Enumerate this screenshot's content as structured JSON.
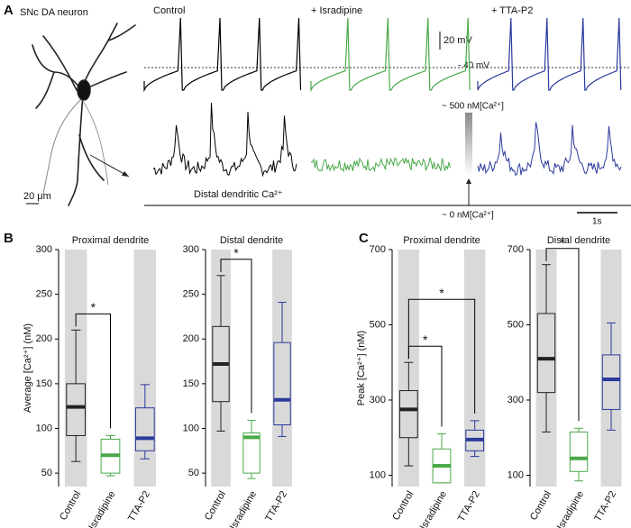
{
  "figure": {
    "panel_labels": [
      "A",
      "B",
      "C"
    ],
    "neuron_label": "SNc DA neuron",
    "conditions": [
      {
        "text": "Control",
        "color": "#000000"
      },
      {
        "text": "+ Isradipine",
        "color": "#4aa84a"
      },
      {
        "text": "+ TTA-P2",
        "color": "#2b3a9c"
      }
    ],
    "voltage_scale": "20 mV",
    "voltage_level": "- 40 mV",
    "ca_high": "~ 500 nM[Ca²⁺]",
    "ca_low": "~ 0 nM[Ca²⁺]",
    "ca_trace_label": "Distal dendritic Ca²⁺",
    "length_scale": "20 μm",
    "time_scale": "1s"
  },
  "chart_data": [
    {
      "type": "box",
      "title": "Proximal dendrite",
      "ylabel": "Average [Ca²⁺] (nM)",
      "ylim": [
        35,
        300
      ],
      "yticks": [
        50,
        100,
        150,
        200,
        250,
        300
      ],
      "band_color": "#d9d9d9",
      "categories": [
        "Control",
        "Isradipine",
        "TTA-P2"
      ],
      "boxes": [
        {
          "color": "#222222",
          "band": true,
          "low": 63,
          "q1": 92,
          "median": 124,
          "q3": 150,
          "high": 210
        },
        {
          "color": "#4aa84a",
          "band": false,
          "low": 47,
          "q1": 50,
          "median": 70,
          "q3": 88,
          "high": 92
        },
        {
          "color": "#2b3a9c",
          "band": true,
          "low": 66,
          "q1": 75,
          "median": 89,
          "q3": 123,
          "high": 149
        }
      ],
      "annotations": [
        {
          "text": "*",
          "between": [
            "Control",
            "Isradipine"
          ]
        }
      ]
    },
    {
      "type": "box",
      "title": "Distal dendrite",
      "ylim": [
        35,
        300
      ],
      "yticks": [
        50,
        100,
        150,
        200,
        250,
        300
      ],
      "band_color": "#d9d9d9",
      "categories": [
        "Control",
        "Isradipine",
        "TTA-P2"
      ],
      "boxes": [
        {
          "color": "#222222",
          "band": true,
          "low": 97,
          "q1": 130,
          "median": 172,
          "q3": 214,
          "high": 271
        },
        {
          "color": "#4aa84a",
          "band": false,
          "low": 44,
          "q1": 50,
          "median": 90,
          "q3": 95,
          "high": 109
        },
        {
          "color": "#2b3a9c",
          "band": true,
          "low": 91,
          "q1": 104,
          "median": 132,
          "q3": 196,
          "high": 241
        }
      ],
      "annotations": [
        {
          "text": "*",
          "between": [
            "Control",
            "Isradipine"
          ]
        }
      ]
    },
    {
      "type": "box",
      "title": "Proximal dendrite",
      "ylabel": "Peak [Ca²⁺] (nM)",
      "ylim": [
        70,
        700
      ],
      "yticks": [
        100,
        300,
        500,
        700
      ],
      "band_color": "#d9d9d9",
      "categories": [
        "Control",
        "Isradipine",
        "TTA-P2"
      ],
      "boxes": [
        {
          "color": "#222222",
          "band": true,
          "low": 125,
          "q1": 200,
          "median": 275,
          "q3": 325,
          "high": 400
        },
        {
          "color": "#4aa84a",
          "band": false,
          "low": 80,
          "q1": 80,
          "median": 125,
          "q3": 170,
          "high": 210
        },
        {
          "color": "#2b3a9c",
          "band": true,
          "low": 150,
          "q1": 165,
          "median": 195,
          "q3": 220,
          "high": 245
        }
      ],
      "annotations": [
        {
          "text": "*",
          "between": [
            "Control",
            "Isradipine"
          ]
        },
        {
          "text": "*",
          "between": [
            "Control",
            "TTA-P2"
          ]
        }
      ]
    },
    {
      "type": "box",
      "title": "Distal dendrite",
      "ylim": [
        70,
        700
      ],
      "yticks": [
        100,
        300,
        500,
        700
      ],
      "band_color": "#d9d9d9",
      "categories": [
        "Control",
        "Isradipine",
        "TTA-P2"
      ],
      "boxes": [
        {
          "color": "#222222",
          "band": true,
          "low": 215,
          "q1": 320,
          "median": 410,
          "q3": 530,
          "high": 660
        },
        {
          "color": "#4aa84a",
          "band": false,
          "low": 85,
          "q1": 110,
          "median": 145,
          "q3": 215,
          "high": 225
        },
        {
          "color": "#2b3a9c",
          "band": true,
          "low": 220,
          "q1": 275,
          "median": 355,
          "q3": 420,
          "high": 505
        }
      ],
      "annotations": [
        {
          "text": "*",
          "between": [
            "Control",
            "Isradipine"
          ]
        }
      ]
    }
  ]
}
